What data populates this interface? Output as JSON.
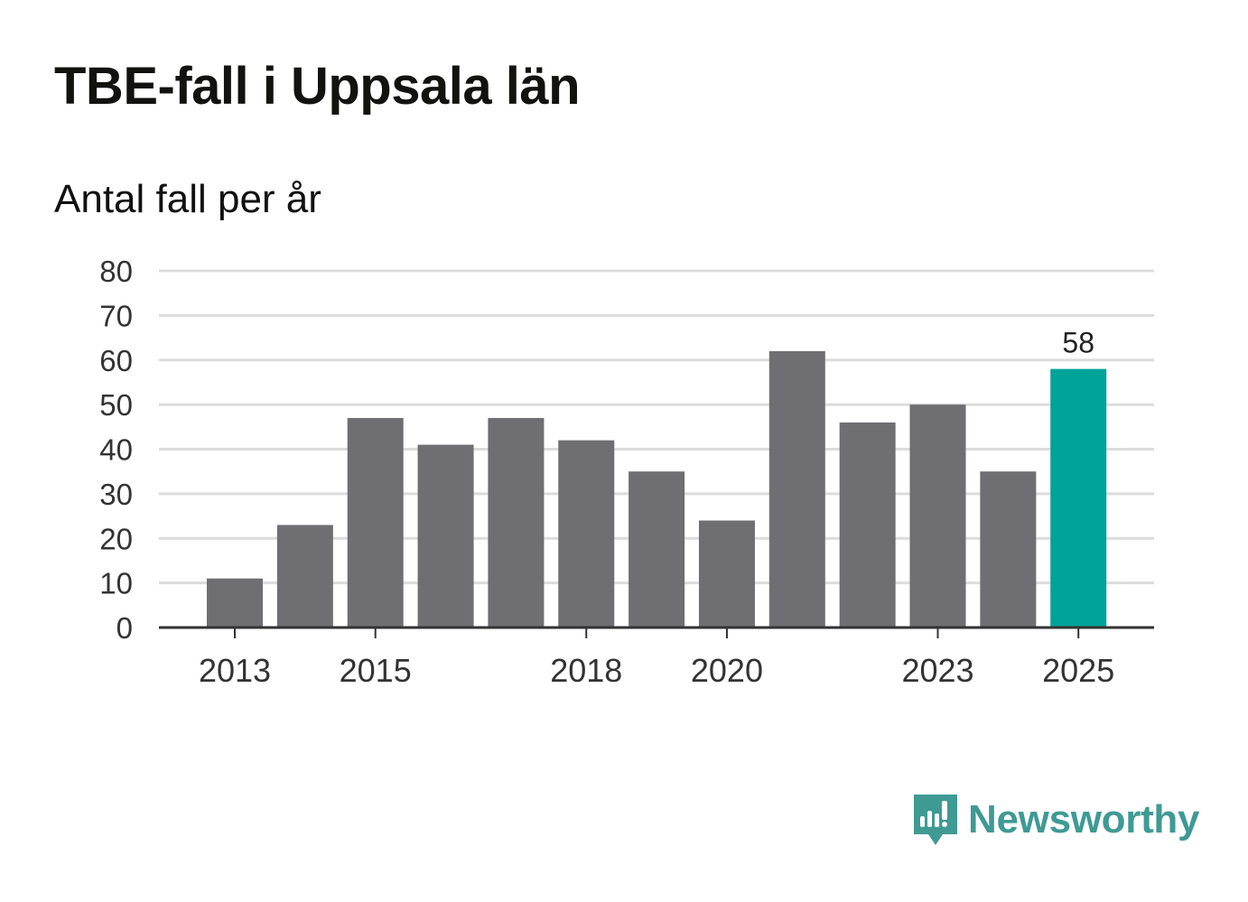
{
  "header": {
    "title": "TBE-fall i Uppsala län",
    "subtitle": "Antal fall per år"
  },
  "chart_data": {
    "type": "bar",
    "title": "TBE-fall i Uppsala län",
    "subtitle": "Antal fall per år",
    "xlabel": "",
    "ylabel": "",
    "categories": [
      "2013",
      "2014",
      "2015",
      "2016",
      "2017",
      "2018",
      "2019",
      "2020",
      "2021",
      "2022",
      "2023",
      "2024",
      "2025"
    ],
    "x_tick_labels": [
      "2013",
      "2015",
      "2018",
      "2020",
      "2023",
      "2025"
    ],
    "values": [
      11,
      23,
      47,
      41,
      47,
      42,
      35,
      24,
      62,
      46,
      50,
      35,
      58
    ],
    "y_ticks": [
      0,
      10,
      20,
      30,
      40,
      50,
      60,
      70,
      80
    ],
    "ylim": [
      0,
      80
    ],
    "grid": true,
    "bar_color": "#6e6e73",
    "highlight_color": "#00a39a",
    "highlight_category": "2025",
    "data_labels": [
      {
        "category": "2025",
        "label": "58"
      }
    ]
  },
  "branding": {
    "name": "Newsworthy",
    "color": "#3f9a94",
    "icon": "newsworthy-logo-icon"
  }
}
